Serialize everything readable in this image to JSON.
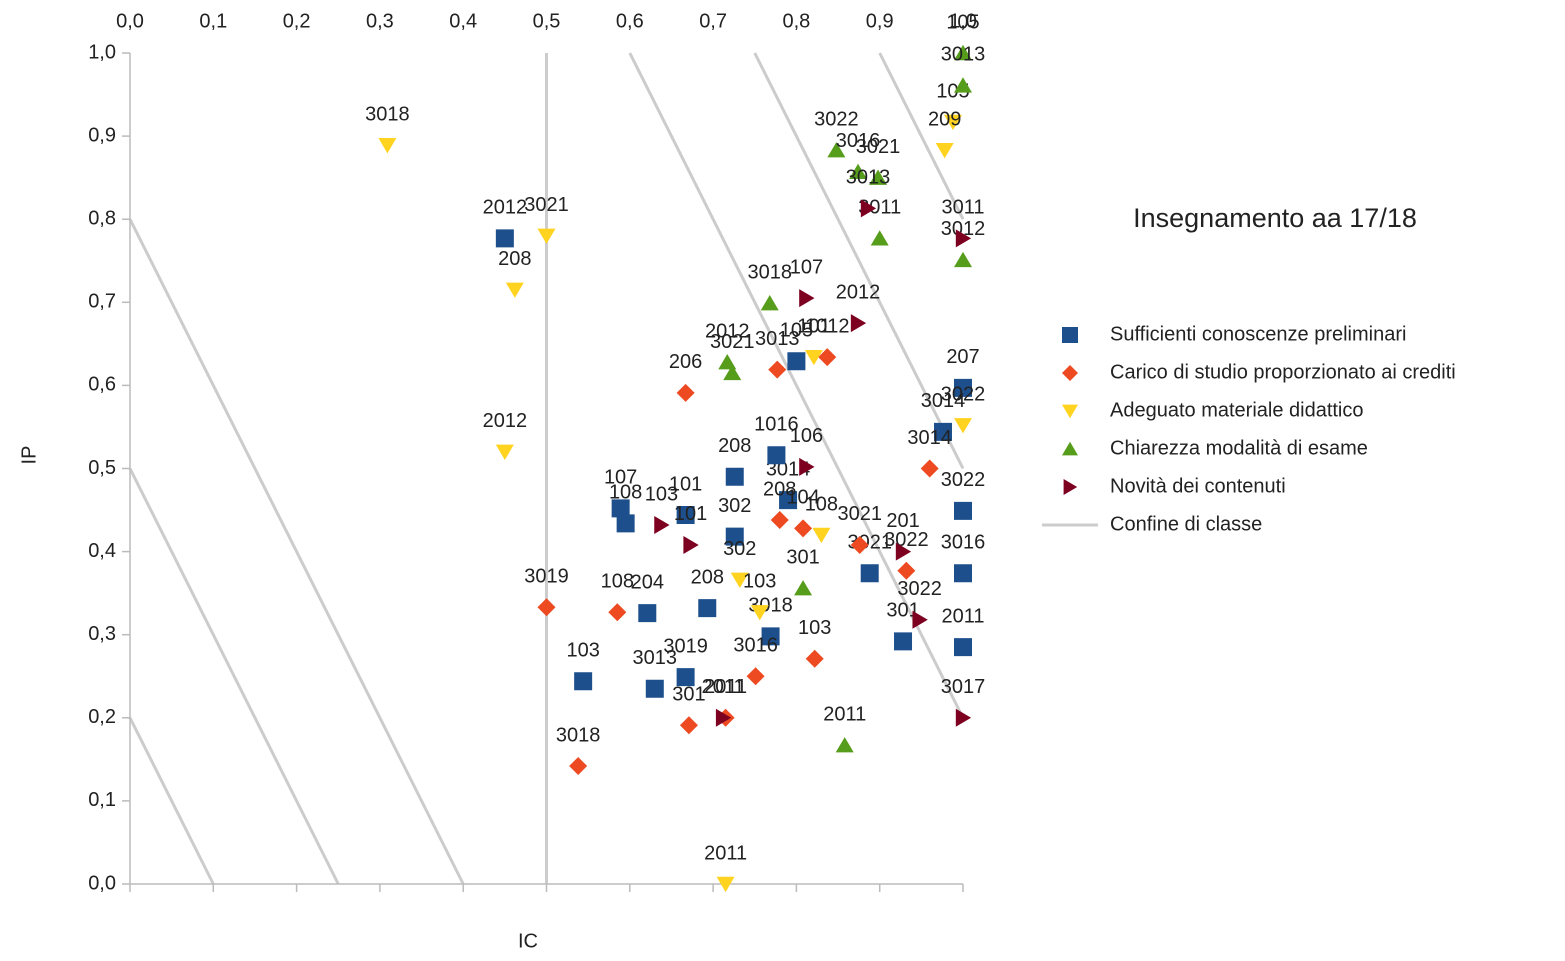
{
  "chart_data": {
    "type": "scatter",
    "title": "Insegnamento aa 17/18",
    "x_label": "IC",
    "y_label": "IP",
    "xlim": [
      0,
      1
    ],
    "ylim": [
      0,
      1
    ],
    "xticks": [
      {
        "value": 0,
        "label": "0,0"
      },
      {
        "value": 0.1,
        "label": "0,1"
      },
      {
        "value": 0.2,
        "label": "0,2"
      },
      {
        "value": 0.3,
        "label": "0,3"
      },
      {
        "value": 0.4,
        "label": "0,4"
      },
      {
        "value": 0.5,
        "label": "0,5"
      },
      {
        "value": 0.6,
        "label": "0,6"
      },
      {
        "value": 0.7,
        "label": "0,7"
      },
      {
        "value": 0.8,
        "label": "0,8"
      },
      {
        "value": 0.9,
        "label": "0,9"
      },
      {
        "value": 1,
        "label": "1,0"
      }
    ],
    "yticks": [
      {
        "value": 0,
        "label": "0,0"
      },
      {
        "value": 0.1,
        "label": "0,1"
      },
      {
        "value": 0.2,
        "label": "0,2"
      },
      {
        "value": 0.3,
        "label": "0,3"
      },
      {
        "value": 0.4,
        "label": "0,4"
      },
      {
        "value": 0.5,
        "label": "0,5"
      },
      {
        "value": 0.6,
        "label": "0,6"
      },
      {
        "value": 0.7,
        "label": "0,7"
      },
      {
        "value": 0.8,
        "label": "0,8"
      },
      {
        "value": 0.9,
        "label": "0,9"
      },
      {
        "value": 1,
        "label": "1,0"
      }
    ],
    "series": [
      {
        "name": "Sufficienti conoscenze preliminari",
        "color": "#1c4f8c",
        "marker": "square",
        "x": [
          0.45,
          0.589,
          0.595,
          0.667,
          0.544,
          0.621,
          0.63,
          0.667,
          0.693,
          0.726,
          0.726,
          0.769,
          0.79,
          0.8,
          0.776,
          0.888,
          0.928,
          1.0,
          1.0,
          1.0,
          1.0,
          0.976
        ],
        "y": [
          0.777,
          0.452,
          0.434,
          0.444,
          0.244,
          0.326,
          0.235,
          0.249,
          0.332,
          0.418,
          0.49,
          0.298,
          0.462,
          0.629,
          0.516,
          0.374,
          0.292,
          0.449,
          0.374,
          0.285,
          0.597,
          0.544
        ],
        "labels": [
          "2012",
          "107",
          "108",
          "101",
          "103",
          "204",
          "3013",
          "3019",
          "208",
          "302",
          "208",
          "3018",
          "3014",
          "105",
          "1016",
          "3021",
          "301",
          "3022",
          "3016",
          "2011",
          "207",
          "3014"
        ]
      },
      {
        "name": "Carico di studio proporzionato ai crediti",
        "color": "#ee4a22",
        "marker": "diamond",
        "x": [
          0.5,
          0.538,
          0.585,
          0.667,
          0.671,
          0.715,
          0.751,
          0.822,
          0.777,
          0.837,
          0.78,
          0.808,
          0.932,
          0.96,
          0.876
        ],
        "y": [
          0.333,
          0.142,
          0.327,
          0.591,
          0.191,
          0.2,
          0.25,
          0.271,
          0.619,
          0.634,
          0.438,
          0.428,
          0.377,
          0.5,
          0.408
        ],
        "labels": [
          "3019",
          "3018",
          "108",
          "206",
          "301",
          "2011",
          "3016",
          "103",
          "3013",
          "1012",
          "208",
          "104",
          "3022",
          "3014",
          "3021"
        ]
      },
      {
        "name": "Adeguato materiale didattico",
        "color": "#ffd320",
        "marker": "down",
        "x": [
          0.309,
          0.5,
          0.462,
          0.45,
          0.715,
          0.732,
          0.756,
          0.83,
          0.821,
          1.0,
          0.988,
          0.978
        ],
        "y": [
          0.889,
          0.78,
          0.715,
          0.52,
          0.0,
          0.366,
          0.327,
          0.42,
          0.634,
          0.552,
          0.917,
          0.883
        ],
        "labels": [
          "3018",
          "3021",
          "208",
          "2012",
          "2011",
          "302",
          "103",
          "108",
          "101",
          "3022",
          "105",
          "209"
        ]
      },
      {
        "name": "Chiarezza modalità di esame",
        "color": "#579d1c",
        "marker": "up",
        "x": [
          1.0,
          1.0,
          0.848,
          0.768,
          0.717,
          0.723,
          0.808,
          0.858,
          0.898,
          0.874,
          0.9,
          1.0
        ],
        "y": [
          1.0,
          0.961,
          0.883,
          0.699,
          0.628,
          0.615,
          0.356,
          0.167,
          0.85,
          0.857,
          0.777,
          0.751
        ],
        "labels": [
          "105",
          "3013",
          "3022",
          "3018",
          "2012",
          "3021",
          "301",
          "2011",
          "3021",
          "3016",
          "3011",
          "3012"
        ]
      },
      {
        "name": "Novità dei contenuti",
        "color": "#7e0021",
        "marker": "right",
        "x": [
          0.638,
          0.673,
          0.712,
          0.812,
          0.886,
          0.874,
          0.948,
          1.0,
          1.0,
          0.812,
          0.928
        ],
        "y": [
          0.432,
          0.408,
          0.2,
          0.705,
          0.813,
          0.675,
          0.318,
          0.2,
          0.777,
          0.502,
          0.4
        ],
        "labels": [
          "103",
          "101",
          "2011",
          "107",
          "3013",
          "2012",
          "3022",
          "3017",
          "3011",
          "106",
          "201"
        ]
      },
      {
        "name": "Confine di classe",
        "color": "#cccccc",
        "marker": "line",
        "x": [
          0,
          0.4,
          null,
          0,
          0.25,
          null,
          0,
          0.1,
          null,
          0.6,
          1,
          null,
          0.75,
          1,
          null,
          0.9,
          1,
          null,
          0.5,
          0.5
        ],
        "y": [
          0.8,
          0,
          null,
          0.5,
          0,
          null,
          0.2,
          0,
          null,
          1,
          0.2,
          null,
          1,
          0.5,
          null,
          1,
          0.8,
          null,
          0,
          1
        ]
      }
    ]
  }
}
